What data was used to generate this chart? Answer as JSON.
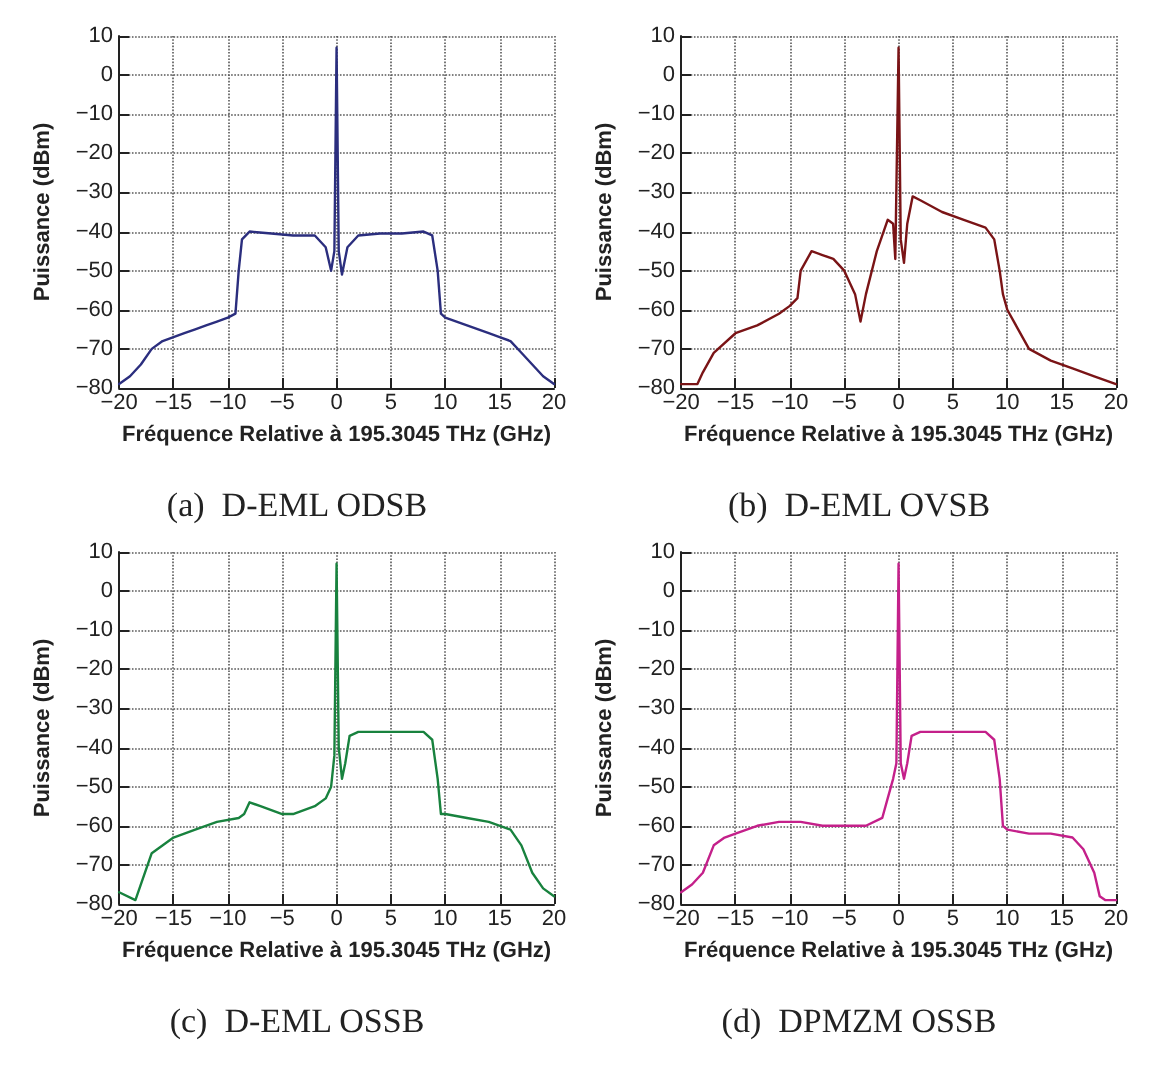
{
  "chart_data": [
    {
      "type": "line",
      "title": "(a)  D-EML ODSB",
      "xlabel": "Fréquence Relative à 195.3045 THz (GHz)",
      "ylabel": "Puissance (dBm)",
      "xlim": [
        -20,
        20
      ],
      "xticks": [
        -20,
        -15,
        -10,
        -5,
        0,
        5,
        10,
        15,
        20
      ],
      "ylim": [
        -80,
        10
      ],
      "yticks": [
        -80,
        -70,
        -60,
        -50,
        -40,
        -30,
        -20,
        -10,
        0,
        10
      ],
      "grid": true,
      "marker": "none",
      "line_style": "solid",
      "series": [
        {
          "color": "#2b2e7e",
          "x": [
            -20,
            -19,
            -18,
            -17,
            -16,
            -15,
            -14,
            -13,
            -12,
            -11,
            -10,
            -9.3,
            -9,
            -8.7,
            -8,
            -6,
            -4,
            -2,
            -1,
            -0.5,
            -0.2,
            0,
            0.2,
            0.5,
            1,
            2,
            4,
            6,
            8,
            8.8,
            9.3,
            9.6,
            10,
            12,
            14,
            15,
            16,
            17,
            18,
            19,
            20
          ],
          "values": [
            -79,
            -77,
            -74,
            -70,
            -68,
            -67,
            -66,
            -65,
            -64,
            -63,
            -62,
            -61,
            -50,
            -42,
            -40,
            -40.5,
            -41,
            -41,
            -44,
            -50,
            -45,
            7,
            -45,
            -51,
            -44,
            -41,
            -40.5,
            -40.5,
            -40,
            -41,
            -50,
            -61,
            -62,
            -64,
            -66,
            -67,
            -68,
            -71,
            -74,
            -77,
            -79
          ]
        }
      ]
    },
    {
      "type": "line",
      "title": "(b)  D-EML OVSB",
      "xlabel": "Fréquence Relative à 195.3045 THz (GHz)",
      "ylabel": "Puissance (dBm)",
      "xlim": [
        -20,
        20
      ],
      "xticks": [
        -20,
        -15,
        -10,
        -5,
        0,
        5,
        10,
        15,
        20
      ],
      "ylim": [
        -80,
        10
      ],
      "yticks": [
        -80,
        -70,
        -60,
        -50,
        -40,
        -30,
        -20,
        -10,
        0,
        10
      ],
      "grid": true,
      "marker": "none",
      "line_style": "solid",
      "series": [
        {
          "color": "#7a1416",
          "x": [
            -20,
            -18.5,
            -18,
            -17,
            -15,
            -13,
            -11,
            -10,
            -9.3,
            -9,
            -8,
            -7,
            -6,
            -5,
            -4,
            -3.5,
            -3,
            -2,
            -1,
            -0.5,
            -0.3,
            0,
            0.2,
            0.5,
            0.8,
            1.3,
            2,
            4,
            6,
            8,
            8.8,
            9.3,
            9.6,
            10,
            11,
            12,
            14,
            16,
            18,
            20
          ],
          "values": [
            -79,
            -79,
            -76,
            -71,
            -66,
            -64,
            -61,
            -59,
            -57,
            -50,
            -45,
            -46,
            -47,
            -50,
            -56,
            -63,
            -56,
            -45,
            -37,
            -38,
            -47,
            7,
            -42,
            -48,
            -38,
            -31,
            -32,
            -35,
            -37,
            -39,
            -42,
            -50,
            -56,
            -60,
            -65,
            -70,
            -73,
            -75,
            -77,
            -79
          ]
        }
      ]
    },
    {
      "type": "line",
      "title": "(c)  D-EML OSSB",
      "xlabel": "Fréquence Relative à 195.3045 THz (GHz)",
      "ylabel": "Puissance (dBm)",
      "xlim": [
        -20,
        20
      ],
      "xticks": [
        -20,
        -15,
        -10,
        -5,
        0,
        5,
        10,
        15,
        20
      ],
      "ylim": [
        -80,
        10
      ],
      "yticks": [
        -80,
        -70,
        -60,
        -50,
        -40,
        -30,
        -20,
        -10,
        0,
        10
      ],
      "grid": true,
      "marker": "none",
      "line_style": "solid",
      "series": [
        {
          "color": "#18823e",
          "x": [
            -20,
            -18.5,
            -18,
            -17,
            -15,
            -13,
            -11,
            -9,
            -8.5,
            -8,
            -7,
            -6,
            -5,
            -4,
            -3,
            -2,
            -1,
            -0.5,
            -0.2,
            0,
            0.2,
            0.5,
            0.8,
            1.2,
            2,
            4,
            6,
            8,
            8.8,
            9.3,
            9.6,
            10,
            12,
            14,
            16,
            17,
            18,
            19,
            20
          ],
          "values": [
            -77,
            -79,
            -75,
            -67,
            -63,
            -61,
            -59,
            -58,
            -57,
            -54,
            -55,
            -56,
            -57,
            -57,
            -56,
            -55,
            -53,
            -50,
            -42,
            7,
            -40,
            -48,
            -44,
            -37,
            -36,
            -36,
            -36,
            -36,
            -38,
            -48,
            -57,
            -57,
            -58,
            -59,
            -61,
            -65,
            -72,
            -76,
            -78
          ]
        }
      ]
    },
    {
      "type": "line",
      "title": "(d)  DPMZM OSSB",
      "xlabel": "Fréquence Relative à 195.3045 THz (GHz)",
      "ylabel": "Puissance (dBm)",
      "xlim": [
        -20,
        20
      ],
      "xticks": [
        -20,
        -15,
        -10,
        -5,
        0,
        5,
        10,
        15,
        20
      ],
      "ylim": [
        -80,
        10
      ],
      "yticks": [
        -80,
        -70,
        -60,
        -50,
        -40,
        -30,
        -20,
        -10,
        0,
        10
      ],
      "grid": true,
      "marker": "none",
      "line_style": "solid",
      "series": [
        {
          "color": "#c4208a",
          "x": [
            -20,
            -19,
            -18,
            -17,
            -16,
            -15,
            -13,
            -11,
            -9,
            -7,
            -5,
            -3,
            -1.5,
            -1,
            -0.5,
            -0.2,
            0,
            0.2,
            0.5,
            0.8,
            1.2,
            2,
            4,
            6,
            8,
            8.8,
            9.3,
            9.6,
            10,
            12,
            14,
            16,
            17,
            18,
            18.5,
            19,
            20
          ],
          "values": [
            -77,
            -75,
            -72,
            -65,
            -63,
            -62,
            -60,
            -59,
            -59,
            -60,
            -60,
            -60,
            -58,
            -53,
            -48,
            -44,
            7,
            -44,
            -48,
            -44,
            -37,
            -36,
            -36,
            -36,
            -36,
            -38,
            -48,
            -60,
            -61,
            -62,
            -62,
            -63,
            -66,
            -72,
            -78,
            -79,
            -79
          ]
        }
      ]
    }
  ]
}
